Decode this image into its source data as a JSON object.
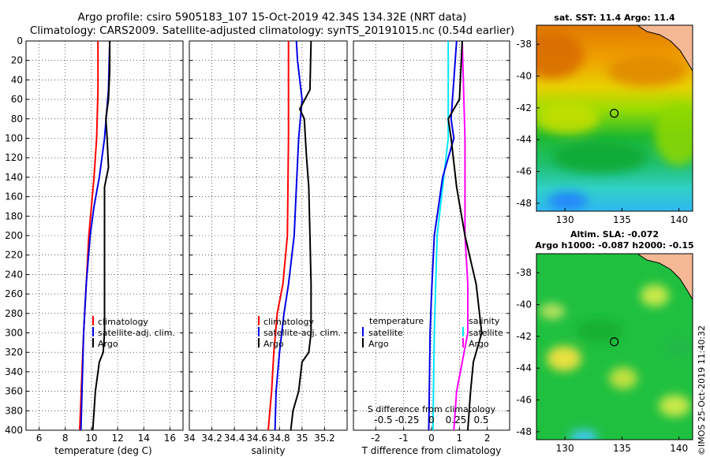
{
  "title": {
    "line1": "Argo profile: csiro 5905183_107 15-Oct-2019 42.34S 134.32E (NRT data)",
    "line2": "Climatology: CARS2009. Satellite-adjusted climatology: synTS_20191015.nc (0.54d earlier)"
  },
  "side_label": "©IMOS 25-Oct-2019 11:40:32",
  "colors": {
    "climatology": "#ff0000",
    "satellite": "#0000e6",
    "argo": "#000000",
    "t_satellite": "#00e5ff",
    "s_satellite": "#ff00ff"
  },
  "chart_data": [
    {
      "type": "line",
      "name": "temperature-profile",
      "xlabel": "temperature (deg C)",
      "ylabel": "",
      "xlim": [
        5,
        17
      ],
      "ylim": [
        400,
        0
      ],
      "xticks": [
        6,
        8,
        10,
        12,
        14,
        16
      ],
      "yticks": [
        0,
        20,
        40,
        60,
        80,
        100,
        120,
        140,
        160,
        180,
        200,
        220,
        240,
        260,
        280,
        300,
        320,
        340,
        360,
        380,
        400
      ],
      "grid": true,
      "legend": [
        "climatology",
        "satellite-adj. clim.",
        "Argo"
      ],
      "series": [
        {
          "name": "climatology",
          "color": "#ff0000",
          "depth": [
            0,
            50,
            100,
            140,
            170,
            200,
            250,
            300,
            350,
            400
          ],
          "values": [
            10.5,
            10.5,
            10.4,
            10.2,
            10.0,
            9.8,
            9.6,
            9.4,
            9.25,
            9.1
          ]
        },
        {
          "name": "satellite-adj. clim.",
          "color": "#0000e6",
          "depth": [
            0,
            50,
            100,
            140,
            170,
            200,
            250,
            300,
            350,
            400
          ],
          "values": [
            11.4,
            11.3,
            11.0,
            10.6,
            10.2,
            9.9,
            9.6,
            9.4,
            9.3,
            9.2
          ]
        },
        {
          "name": "Argo",
          "color": "#000000",
          "depth": [
            0,
            30,
            60,
            80,
            100,
            130,
            150,
            200,
            250,
            300,
            320,
            330,
            360,
            400
          ],
          "values": [
            11.4,
            11.4,
            11.3,
            11.1,
            11.2,
            11.3,
            11.0,
            11.0,
            11.0,
            11.0,
            10.9,
            10.6,
            10.3,
            10.1
          ]
        }
      ]
    },
    {
      "type": "line",
      "name": "salinity-profile",
      "xlabel": "salinity",
      "ylabel": "",
      "xlim": [
        34.0,
        35.4
      ],
      "ylim": [
        400,
        0
      ],
      "xticks": [
        34,
        34.2,
        34.4,
        34.6,
        34.8,
        35,
        35.2
      ],
      "yticks": [
        0,
        20,
        40,
        60,
        80,
        100,
        120,
        140,
        160,
        180,
        200,
        220,
        240,
        260,
        280,
        300,
        320,
        340,
        360,
        380,
        400
      ],
      "grid": true,
      "legend": [
        "climatology",
        "satellite-adj. clim.",
        "Argo"
      ],
      "series": [
        {
          "name": "climatology",
          "color": "#ff0000",
          "depth": [
            0,
            100,
            200,
            250,
            280,
            320,
            360,
            400
          ],
          "values": [
            34.88,
            34.88,
            34.87,
            34.83,
            34.78,
            34.75,
            34.73,
            34.7
          ]
        },
        {
          "name": "satellite-adj. clim.",
          "color": "#0000e6",
          "depth": [
            0,
            20,
            60,
            100,
            150,
            200,
            250,
            280,
            320,
            360,
            400
          ],
          "values": [
            34.95,
            34.96,
            35.0,
            34.97,
            34.95,
            34.93,
            34.88,
            34.84,
            34.8,
            34.77,
            34.76
          ]
        },
        {
          "name": "Argo",
          "color": "#000000",
          "depth": [
            0,
            50,
            70,
            80,
            100,
            120,
            150,
            200,
            250,
            300,
            320,
            330,
            360,
            380,
            400
          ],
          "values": [
            35.08,
            35.07,
            34.98,
            35.02,
            35.03,
            35.04,
            35.06,
            35.07,
            35.08,
            35.08,
            35.06,
            35.0,
            34.97,
            34.92,
            34.9
          ]
        }
      ]
    },
    {
      "type": "line",
      "name": "difference-profile",
      "xlabel": "T difference from climatology",
      "xlabel_top": "S difference from climatology",
      "xlim": [
        -2.8,
        2.8
      ],
      "ylim": [
        400,
        0
      ],
      "xticks": [
        -2,
        -1,
        0,
        1,
        2
      ],
      "xticks_s": [
        "-0.5",
        "-0.25",
        "0",
        "0.25",
        "0.5"
      ],
      "yticks": [
        0,
        20,
        40,
        60,
        80,
        100,
        120,
        140,
        160,
        180,
        200,
        220,
        240,
        260,
        280,
        300,
        320,
        340,
        360,
        380,
        400
      ],
      "grid": true,
      "legend": {
        "temperature_header": "temperature",
        "salinity_header": "salinity",
        "entries": [
          "satellite",
          "Argo"
        ]
      },
      "series": [
        {
          "name": "T satellite",
          "color": "#00e5ff",
          "depth": [
            0,
            100,
            150,
            200,
            300,
            400
          ],
          "values": [
            0.6,
            0.6,
            0.4,
            0.2,
            0.1,
            0.05
          ]
        },
        {
          "name": "T Argo",
          "color": "#0000e6",
          "depth": [
            0,
            80,
            100,
            140,
            180,
            200,
            260,
            300,
            360,
            400
          ],
          "values": [
            0.9,
            0.7,
            0.8,
            0.4,
            0.2,
            0.1,
            0.0,
            -0.05,
            -0.08,
            -0.1
          ]
        },
        {
          "name": "S satellite",
          "color": "#ff00ff",
          "depth": [
            0,
            100,
            150,
            200,
            250,
            300,
            330,
            360,
            400
          ],
          "values": [
            1.1,
            1.2,
            1.2,
            1.2,
            1.3,
            1.3,
            1.1,
            0.9,
            0.8
          ]
        },
        {
          "name": "S Argo",
          "color": "#000000",
          "depth": [
            0,
            60,
            80,
            100,
            150,
            200,
            250,
            300,
            330,
            360,
            400
          ],
          "values": [
            1.1,
            1.0,
            0.6,
            0.7,
            0.9,
            1.2,
            1.6,
            1.8,
            1.5,
            1.4,
            1.3
          ]
        }
      ]
    },
    {
      "type": "heatmap",
      "name": "sst-map",
      "title": "sat. SST: 11.4 Argo: 11.4",
      "xticks": [
        130,
        135,
        140
      ],
      "yticks": [
        -38,
        -40,
        -42,
        -44,
        -46,
        -48
      ],
      "xlim": [
        127.5,
        141.2
      ],
      "ylim": [
        -48.5,
        -36.8
      ],
      "marker": {
        "lon": 134.32,
        "lat": -42.34
      }
    },
    {
      "type": "heatmap",
      "name": "sla-map",
      "title": "Altim. SLA: -0.072",
      "subtitle": "Argo h1000: -0.087 h2000: -0.15",
      "xticks": [
        130,
        135,
        140
      ],
      "yticks": [
        -38,
        -40,
        -42,
        -44,
        -46,
        -48
      ],
      "xlim": [
        127.5,
        141.2
      ],
      "ylim": [
        -48.5,
        -36.8
      ],
      "marker": {
        "lon": 134.32,
        "lat": -42.34
      }
    }
  ]
}
